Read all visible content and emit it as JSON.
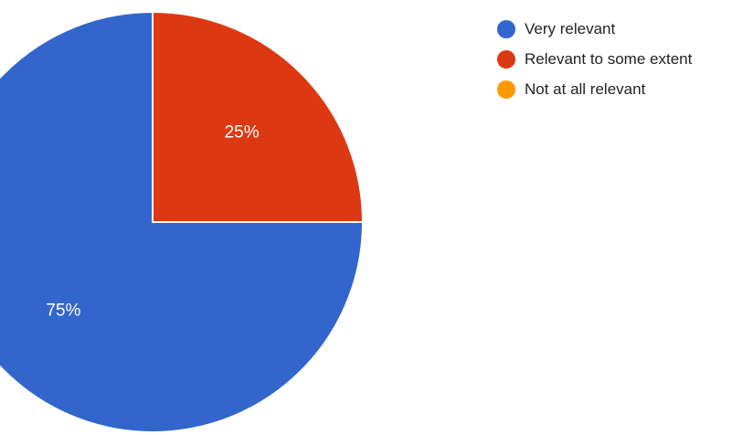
{
  "chart_data": {
    "type": "pie",
    "title": "",
    "categories": [
      "Very relevant",
      "Relevant to some extent",
      "Not at all relevant"
    ],
    "values": [
      75,
      25,
      0
    ],
    "labels": [
      "75%",
      "25%",
      ""
    ],
    "colors": [
      "#3366cc",
      "#dc3912",
      "#ff9900"
    ],
    "legend_position": "top-right"
  }
}
